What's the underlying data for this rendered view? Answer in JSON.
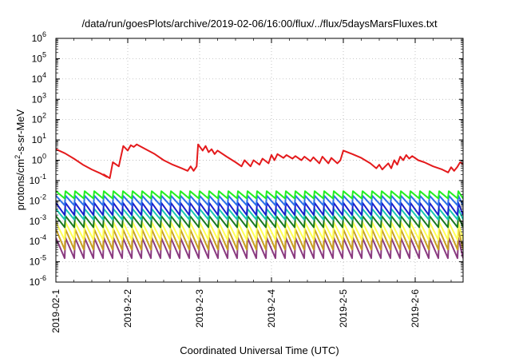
{
  "chart_data": {
    "type": "line",
    "title": "/data/run/goesPlots/archive/2019-02-06/16:00/flux/../flux/5daysMarsFluxes.txt",
    "xlabel": "Coordinated Universal Time (UTC)",
    "ylabel": "protons/cm2-s-sr-MeV",
    "ylabel_parts": {
      "before": "protons/cm",
      "sup": "2",
      "after": "-s-sr-MeV"
    },
    "yscale": "log",
    "ylim_exponents": [
      -6,
      6
    ],
    "y_tick_labels": [
      {
        "base": "10",
        "exp": "-6"
      },
      {
        "base": "10",
        "exp": "-5"
      },
      {
        "base": "10",
        "exp": "-4"
      },
      {
        "base": "10",
        "exp": "-3"
      },
      {
        "base": "10",
        "exp": "-2"
      },
      {
        "base": "10",
        "exp": "-1"
      },
      {
        "base": "10",
        "exp": "0"
      },
      {
        "base": "10",
        "exp": "1"
      },
      {
        "base": "10",
        "exp": "2"
      },
      {
        "base": "10",
        "exp": "3"
      },
      {
        "base": "10",
        "exp": "4"
      },
      {
        "base": "10",
        "exp": "5"
      },
      {
        "base": "10",
        "exp": "6"
      }
    ],
    "x_start": "2019-02-01T00:00",
    "x_end": "2019-02-06T16:00",
    "x_tick_labels": [
      "2019-02-1",
      "2019-2-2",
      "2019-2-3",
      "2019-2-4",
      "2019-2-5",
      "2019-2-6"
    ],
    "grid": true,
    "colors": {
      "s1": "#e41a1c",
      "s2": "#22ee22",
      "s3": "#2a6ee8",
      "s4": "#1a20cc",
      "s5": "#18c8b0",
      "s6": "#1a7a20",
      "s7": "#ffff55",
      "s8": "#c8a020",
      "s9": "#8a3a80"
    },
    "series": [
      {
        "id": "s1",
        "points": [
          [
            "2019-02-01T00:00",
            3.5
          ],
          [
            "2019-02-01T03:00",
            2.2
          ],
          [
            "2019-02-01T06:00",
            1.2
          ],
          [
            "2019-02-01T09:00",
            0.6
          ],
          [
            "2019-02-01T12:00",
            0.35
          ],
          [
            "2019-02-01T15:00",
            0.22
          ],
          [
            "2019-02-01T17:00",
            0.15
          ],
          [
            "2019-02-01T16:00",
            0.2
          ],
          [
            "2019-02-01T18:00",
            0.13
          ],
          [
            "2019-02-01T19:00",
            0.8
          ],
          [
            "2019-02-01T21:00",
            0.5
          ],
          [
            "2019-02-01T22:30",
            5.0
          ],
          [
            "2019-02-02T00:00",
            3.0
          ],
          [
            "2019-02-02T01:00",
            5.5
          ],
          [
            "2019-02-02T02:00",
            4.5
          ],
          [
            "2019-02-02T03:00",
            6.0
          ],
          [
            "2019-02-02T06:00",
            3.5
          ],
          [
            "2019-02-02T09:00",
            2.0
          ],
          [
            "2019-02-02T12:00",
            1.0
          ],
          [
            "2019-02-02T15:00",
            0.6
          ],
          [
            "2019-02-02T18:00",
            0.4
          ],
          [
            "2019-02-02T20:00",
            0.3
          ],
          [
            "2019-02-02T21:00",
            0.5
          ],
          [
            "2019-02-02T22:00",
            0.3
          ],
          [
            "2019-02-02T23:00",
            0.5
          ],
          [
            "2019-02-02T23:30",
            6.0
          ],
          [
            "2019-02-03T01:00",
            3.0
          ],
          [
            "2019-02-03T02:00",
            5.0
          ],
          [
            "2019-02-03T03:00",
            2.5
          ],
          [
            "2019-02-03T04:00",
            3.5
          ],
          [
            "2019-02-03T05:00",
            2.0
          ],
          [
            "2019-02-03T06:00",
            3.0
          ],
          [
            "2019-02-03T09:00",
            1.5
          ],
          [
            "2019-02-03T12:00",
            0.8
          ],
          [
            "2019-02-03T14:00",
            0.5
          ],
          [
            "2019-02-03T15:00",
            1.0
          ],
          [
            "2019-02-03T17:00",
            0.5
          ],
          [
            "2019-02-03T18:00",
            1.0
          ],
          [
            "2019-02-03T20:00",
            0.6
          ],
          [
            "2019-02-03T21:00",
            1.2
          ],
          [
            "2019-02-03T23:00",
            0.7
          ],
          [
            "2019-02-04T00:00",
            1.8
          ],
          [
            "2019-02-04T01:00",
            1.0
          ],
          [
            "2019-02-04T02:00",
            2.0
          ],
          [
            "2019-02-04T04:00",
            1.3
          ],
          [
            "2019-02-04T05:00",
            1.8
          ],
          [
            "2019-02-04T07:00",
            1.2
          ],
          [
            "2019-02-04T08:00",
            1.6
          ],
          [
            "2019-02-04T10:00",
            1.0
          ],
          [
            "2019-02-04T11:00",
            1.5
          ],
          [
            "2019-02-04T13:00",
            0.9
          ],
          [
            "2019-02-04T14:00",
            1.4
          ],
          [
            "2019-02-04T16:00",
            0.7
          ],
          [
            "2019-02-04T17:00",
            1.5
          ],
          [
            "2019-02-04T19:00",
            0.7
          ],
          [
            "2019-02-04T20:00",
            1.3
          ],
          [
            "2019-02-04T22:00",
            0.7
          ],
          [
            "2019-02-04T23:00",
            1.0
          ],
          [
            "2019-02-05T00:00",
            3.0
          ],
          [
            "2019-02-05T03:00",
            2.0
          ],
          [
            "2019-02-05T06:00",
            1.3
          ],
          [
            "2019-02-05T09:00",
            0.7
          ],
          [
            "2019-02-05T11:00",
            0.4
          ],
          [
            "2019-02-05T12:00",
            0.6
          ],
          [
            "2019-02-05T13:00",
            0.35
          ],
          [
            "2019-02-05T14:00",
            0.5
          ],
          [
            "2019-02-05T15:00",
            0.7
          ],
          [
            "2019-02-05T16:00",
            0.4
          ],
          [
            "2019-02-05T17:00",
            1.0
          ],
          [
            "2019-02-05T18:00",
            0.6
          ],
          [
            "2019-02-05T19:00",
            1.5
          ],
          [
            "2019-02-05T20:00",
            1.0
          ],
          [
            "2019-02-05T21:00",
            1.8
          ],
          [
            "2019-02-05T22:00",
            1.2
          ],
          [
            "2019-02-05T23:00",
            1.6
          ],
          [
            "2019-02-06T01:00",
            1.0
          ],
          [
            "2019-02-06T03:00",
            0.8
          ],
          [
            "2019-02-06T06:00",
            0.5
          ],
          [
            "2019-02-06T09:00",
            0.35
          ],
          [
            "2019-02-06T11:00",
            0.25
          ],
          [
            "2019-02-06T12:00",
            0.45
          ],
          [
            "2019-02-06T13:00",
            0.3
          ],
          [
            "2019-02-06T14:00",
            0.45
          ],
          [
            "2019-02-06T15:00",
            0.8
          ],
          [
            "2019-02-06T16:00",
            0.65
          ]
        ]
      },
      {
        "id": "s2",
        "sawtooth": {
          "high": 0.03,
          "low": 0.013,
          "cycle_hours": 3.2
        }
      },
      {
        "id": "s3",
        "sawtooth": {
          "high": 0.018,
          "low": 0.006,
          "cycle_hours": 3.2
        }
      },
      {
        "id": "s4",
        "sawtooth": {
          "high": 0.008,
          "low": 0.002,
          "cycle_hours": 3.2
        }
      },
      {
        "id": "s5",
        "sawtooth": {
          "high": 0.004,
          "low": 0.0012,
          "cycle_hours": 3.2
        }
      },
      {
        "id": "s6",
        "sawtooth": {
          "high": 0.0018,
          "low": 0.0005,
          "cycle_hours": 3.2
        }
      },
      {
        "id": "s7",
        "sawtooth": {
          "high": 0.0009,
          "low": 0.00012,
          "cycle_hours": 3.2
        }
      },
      {
        "id": "s8",
        "sawtooth": {
          "high": 0.0004,
          "low": 4e-05,
          "cycle_hours": 3.2
        }
      },
      {
        "id": "s9",
        "sawtooth": {
          "high": 0.00015,
          "low": 1.5e-05,
          "cycle_hours": 3.2
        }
      }
    ]
  }
}
